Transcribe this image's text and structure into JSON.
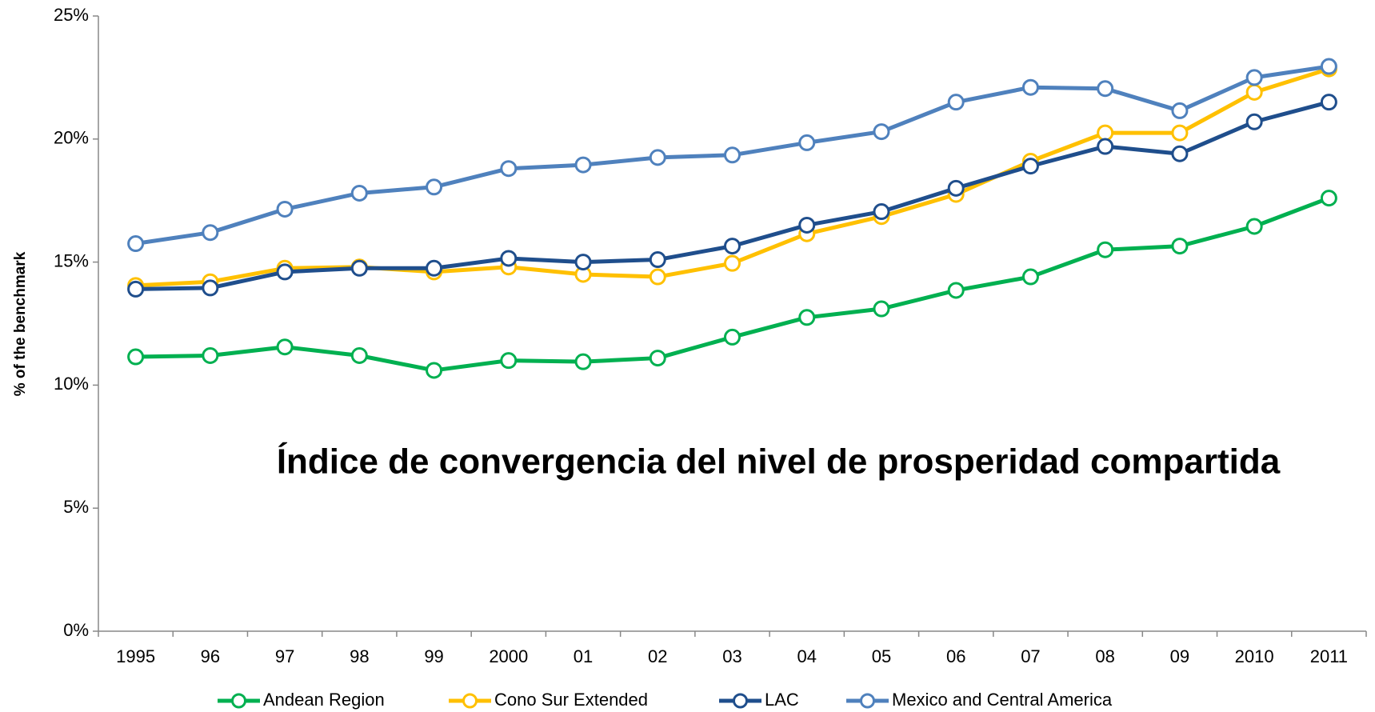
{
  "chart_data": {
    "type": "line",
    "title": "Índice de  convergencia del nivel de prosperidad compartida",
    "y_label": "% of the benchmark",
    "categories": [
      "1995",
      "96",
      "97",
      "98",
      "99",
      "2000",
      "01",
      "02",
      "03",
      "04",
      "05",
      "06",
      "07",
      "08",
      "09",
      "2010",
      "2011"
    ],
    "series": [
      {
        "name": "Andean Region",
        "color": "#00b050",
        "values": [
          11.15,
          11.2,
          11.55,
          11.2,
          10.6,
          11.0,
          10.95,
          11.1,
          11.95,
          12.75,
          13.1,
          13.85,
          14.4,
          15.5,
          15.65,
          16.45,
          17.6
        ]
      },
      {
        "name": "Cono Sur Extended",
        "color": "#ffc000",
        "values": [
          14.05,
          14.2,
          14.75,
          14.8,
          14.6,
          14.8,
          14.5,
          14.4,
          14.95,
          16.15,
          16.85,
          17.75,
          19.1,
          20.25,
          20.25,
          21.9,
          22.85
        ]
      },
      {
        "name": "LAC",
        "color": "#1f4e8c",
        "values": [
          13.9,
          13.95,
          14.6,
          14.75,
          14.75,
          15.15,
          15.0,
          15.1,
          15.65,
          16.5,
          17.05,
          18.0,
          18.9,
          19.7,
          19.4,
          20.7,
          21.5
        ]
      },
      {
        "name": "Mexico and Central America",
        "color": "#4f81bd",
        "values": [
          15.75,
          16.2,
          17.15,
          17.8,
          18.05,
          18.8,
          18.95,
          19.25,
          19.35,
          19.85,
          20.3,
          21.5,
          22.1,
          22.05,
          21.15,
          22.5,
          22.95
        ]
      }
    ],
    "ylim": [
      0,
      25
    ],
    "yticks": [
      {
        "value": 0,
        "label": "0%"
      },
      {
        "value": 5,
        "label": "5%"
      },
      {
        "value": 10,
        "label": "10%"
      },
      {
        "value": 15,
        "label": "15%"
      },
      {
        "value": 20,
        "label": "20%"
      },
      {
        "value": 25,
        "label": "25%"
      }
    ],
    "grid": false,
    "legend": "bottom"
  }
}
